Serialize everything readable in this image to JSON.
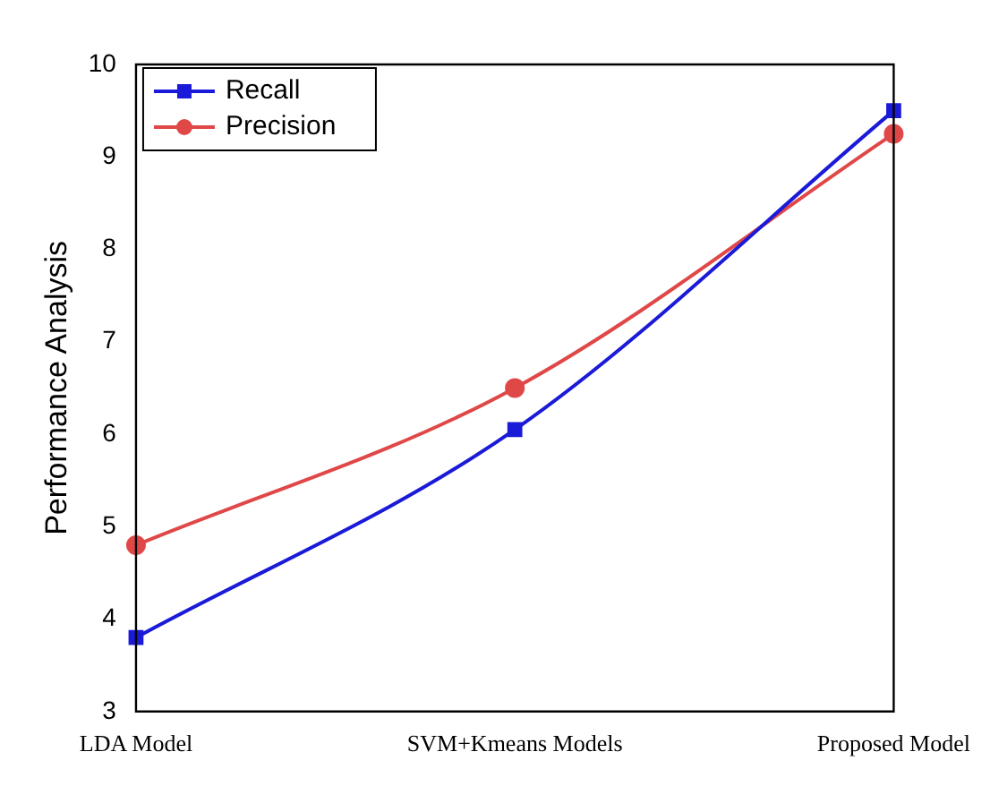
{
  "chart_data": {
    "type": "line",
    "ylabel": "Performance Analysis",
    "categories": [
      "LDA Model",
      "SVM+Kmeans Models",
      "Proposed Model"
    ],
    "series": [
      {
        "name": "Recall",
        "color": "#1a1ad8",
        "marker": "square",
        "values": [
          3.8,
          6.05,
          9.5
        ]
      },
      {
        "name": "Precision",
        "color": "#e04848",
        "marker": "circle",
        "values": [
          4.8,
          6.5,
          9.25
        ]
      }
    ],
    "ylim": [
      3,
      10
    ],
    "yticks": [
      3,
      4,
      5,
      6,
      7,
      8,
      9,
      10
    ],
    "legend": "top left",
    "grid": false
  }
}
